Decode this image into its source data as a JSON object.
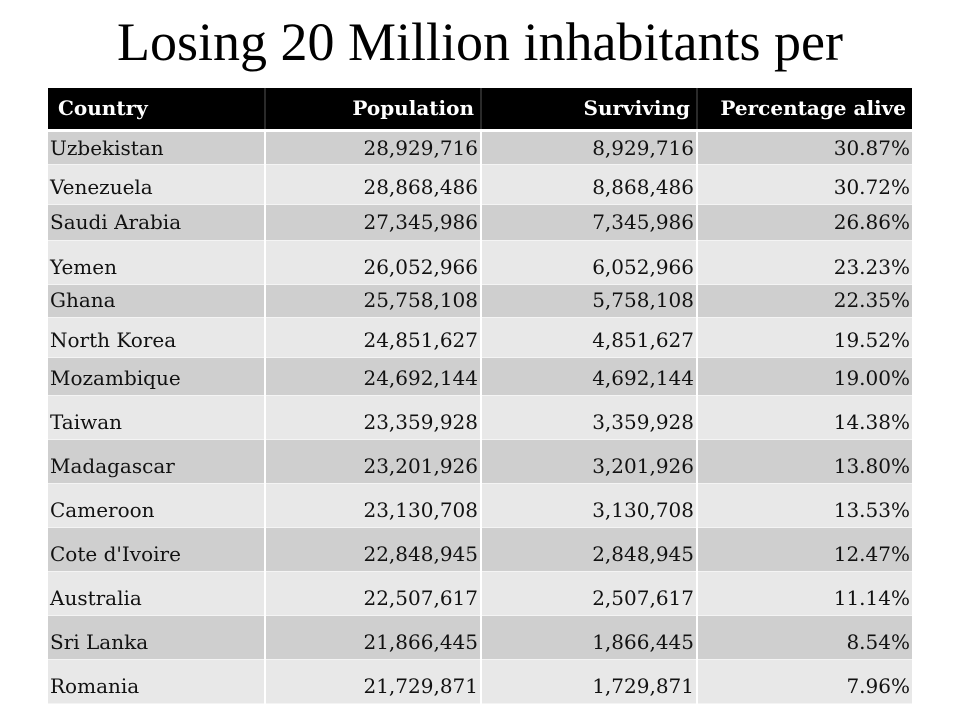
{
  "title": "Losing 20 Million inhabitants per",
  "table": {
    "headers": [
      "Country",
      "Population",
      "Surviving",
      "Percentage alive"
    ],
    "rows": [
      [
        "Uzbekistan",
        "28,929,716",
        "8,929,716",
        "30.87%"
      ],
      [
        "Venezuela",
        "28,868,486",
        "8,868,486",
        "30.72%"
      ],
      [
        "Saudi Arabia",
        "27,345,986",
        "7,345,986",
        "26.86%"
      ],
      [
        "Yemen",
        "26,052,966",
        "6,052,966",
        "23.23%"
      ],
      [
        "Ghana",
        "25,758,108",
        "5,758,108",
        "22.35%"
      ],
      [
        "North Korea",
        "24,851,627",
        "4,851,627",
        "19.52%"
      ],
      [
        "Mozambique",
        "24,692,144",
        "4,692,144",
        "19.00%"
      ],
      [
        "Taiwan",
        "23,359,928",
        "3,359,928",
        "14.38%"
      ],
      [
        "Madagascar",
        "23,201,926",
        "3,201,926",
        "13.80%"
      ],
      [
        "Cameroon",
        "23,130,708",
        "3,130,708",
        "13.53%"
      ],
      [
        "Cote d'Ivoire",
        "22,848,945",
        "2,848,945",
        "12.47%"
      ],
      [
        "Australia",
        "22,507,617",
        "2,507,617",
        "11.14%"
      ],
      [
        "Sri Lanka",
        "21,866,445",
        "1,866,445",
        "8.54%"
      ],
      [
        "Romania",
        "21,729,871",
        "1,729,871",
        "7.96%"
      ]
    ]
  },
  "colors": {
    "header_bg": "#000000",
    "header_text": "#ffffff",
    "row_dark": "#cfcfcf",
    "row_light": "#e8e8e8"
  }
}
